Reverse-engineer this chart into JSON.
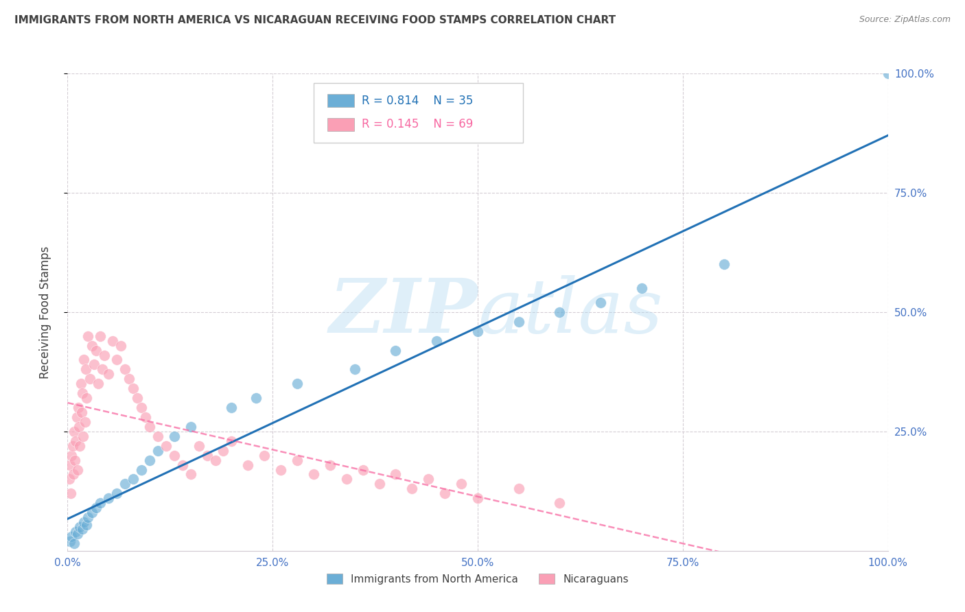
{
  "title": "IMMIGRANTS FROM NORTH AMERICA VS NICARAGUAN RECEIVING FOOD STAMPS CORRELATION CHART",
  "source": "Source: ZipAtlas.com",
  "ylabel": "Receiving Food Stamps",
  "watermark_zip": "ZIP",
  "watermark_atlas": "atlas",
  "blue_label": "Immigrants from North America",
  "pink_label": "Nicaraguans",
  "blue_R": 0.814,
  "blue_N": 35,
  "pink_R": 0.145,
  "pink_N": 69,
  "blue_color": "#6baed6",
  "pink_color": "#fa9fb5",
  "blue_line_color": "#2171b5",
  "pink_line_color": "#f768a1",
  "axis_label_color": "#4472C4",
  "grid_color": "#d0c8d0",
  "title_color": "#404040",
  "source_color": "#808080",
  "xlim": [
    0,
    100
  ],
  "ylim": [
    0,
    100
  ],
  "ytick_positions": [
    25,
    50,
    75,
    100
  ],
  "ytick_labels": [
    "25.0%",
    "50.0%",
    "75.0%",
    "100.0%"
  ],
  "xtick_positions": [
    0,
    25,
    50,
    75,
    100
  ],
  "xtick_labels": [
    "0.0%",
    "25.0%",
    "50.0%",
    "75.0%",
    "100.0%"
  ]
}
